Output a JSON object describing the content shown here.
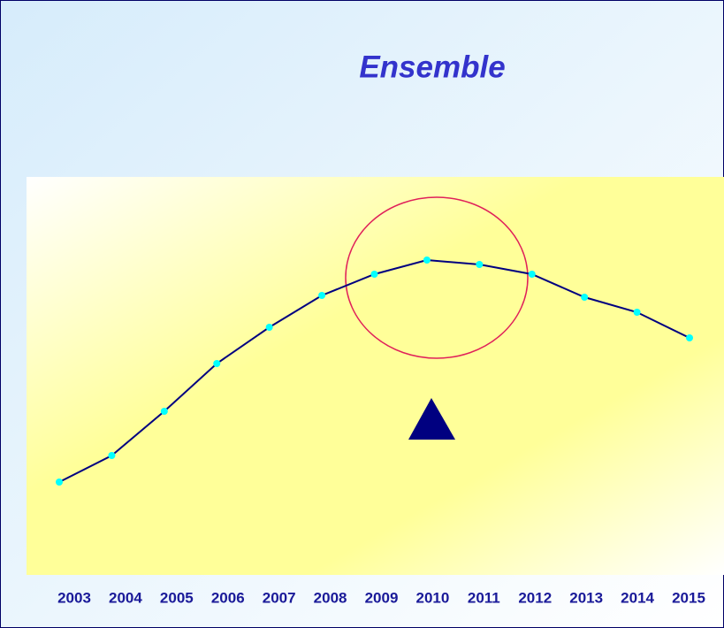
{
  "chart_data": {
    "type": "line",
    "title": "Ensemble",
    "categories": [
      "2003",
      "2004",
      "2005",
      "2006",
      "2007",
      "2008",
      "2009",
      "2010",
      "2011",
      "2012",
      "2013",
      "2014",
      "2015"
    ],
    "series": [
      {
        "color": "#000080",
        "values": [
          55,
          85,
          135,
          189,
          230,
          266,
          290,
          306,
          301,
          290,
          264,
          247,
          218
        ]
      }
    ]
  }
}
